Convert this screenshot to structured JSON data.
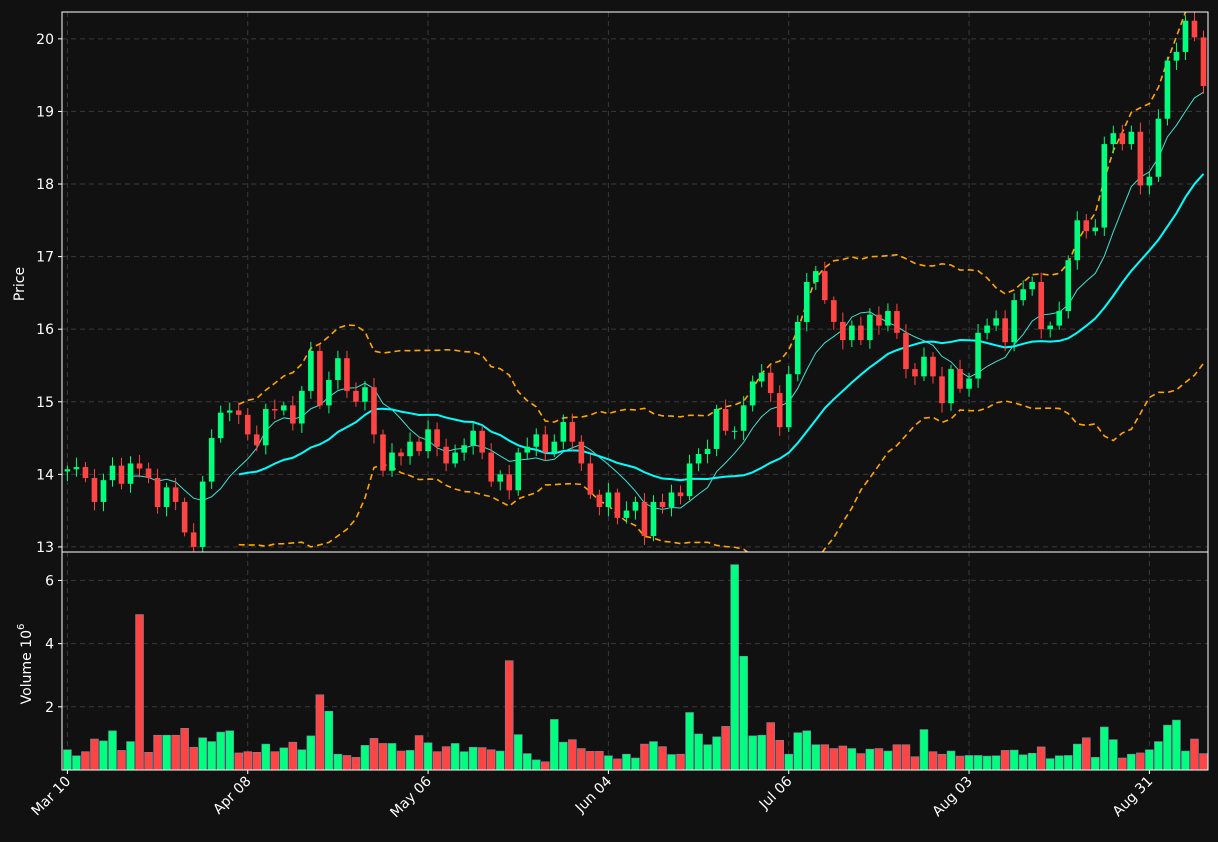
{
  "chart_data": {
    "type": "candlestick",
    "colors": {
      "background": "#111111",
      "up": "#00ff7f",
      "down": "#ff4444",
      "grid": "#3a3a3a",
      "ma_fast": "#40e0d0",
      "ma_slow": "#00ffff",
      "bollinger": "#ffa500",
      "axis": "#ffffff"
    },
    "price_panel": {
      "ylabel": "Price",
      "yticks": [
        13,
        14,
        15,
        16,
        17,
        18,
        19,
        20
      ],
      "ylim": [
        12.93,
        20.37
      ],
      "grid": true
    },
    "volume_panel": {
      "ylabel": "Volume  10",
      "ylabel_exponent": "6",
      "yticks": [
        2,
        4,
        6
      ],
      "ylim": [
        0,
        6.9
      ],
      "grid": true
    },
    "x_ticks": [
      {
        "index": 0,
        "label": "Mar 10"
      },
      {
        "index": 20,
        "label": "Apr 08"
      },
      {
        "index": 40,
        "label": "May 06"
      },
      {
        "index": 60,
        "label": "Jun 04"
      },
      {
        "index": 80,
        "label": "Jul 06"
      },
      {
        "index": 100,
        "label": "Aug 03"
      },
      {
        "index": 120,
        "label": "Aug 31"
      }
    ],
    "x_range": [
      -0.6,
      126.5
    ],
    "dates": [
      "Mar 10",
      "Mar 11",
      "Mar 12",
      "Mar 13",
      "Mar 14",
      "Mar 15",
      "Mar 16",
      "Mar 17",
      "Mar 18",
      "Mar 19",
      "Mar 20",
      "Mar 21",
      "Mar 22",
      "Mar 23",
      "Mar 24",
      "Mar 25",
      "Mar 26",
      "Mar 27",
      "Mar 28",
      "Mar 29",
      "Apr 08",
      "Apr 09",
      "Apr 10",
      "Apr 11",
      "Apr 12",
      "Apr 13",
      "Apr 14",
      "Apr 15",
      "Apr 16",
      "Apr 17",
      "Apr 18",
      "Apr 19",
      "Apr 20",
      "Apr 21",
      "Apr 22",
      "Apr 23",
      "Apr 24",
      "Apr 25",
      "Apr 26",
      "Apr 27",
      "May 06",
      "May 07",
      "May 08",
      "May 09",
      "May 10",
      "May 11",
      "May 12",
      "May 13",
      "May 14",
      "May 15",
      "May 16",
      "May 17",
      "May 18",
      "May 19",
      "May 20",
      "May 21",
      "May 22",
      "May 23",
      "May 24",
      "May 25",
      "Jun 04",
      "Jun 05",
      "Jun 06",
      "Jun 07",
      "Jun 08",
      "Jun 09",
      "Jun 10",
      "Jun 11",
      "Jun 12",
      "Jun 13",
      "Jun 14",
      "Jun 15",
      "Jun 16",
      "Jun 17",
      "Jun 18",
      "Jun 19",
      "Jun 20",
      "Jun 21",
      "Jun 22",
      "Jun 23",
      "Jul 06",
      "Jul 07",
      "Jul 08",
      "Jul 09",
      "Jul 10",
      "Jul 11",
      "Jul 12",
      "Jul 13",
      "Jul 14",
      "Jul 15",
      "Jul 16",
      "Jul 17",
      "Jul 18",
      "Jul 19",
      "Jul 20",
      "Jul 21",
      "Jul 22",
      "Jul 23",
      "Jul 24",
      "Jul 25",
      "Aug 03",
      "Aug 04",
      "Aug 05",
      "Aug 06",
      "Aug 07",
      "Aug 08",
      "Aug 09",
      "Aug 10",
      "Aug 11",
      "Aug 12",
      "Aug 13",
      "Aug 14",
      "Aug 15",
      "Aug 16",
      "Aug 17",
      "Aug 18",
      "Aug 19",
      "Aug 20",
      "Aug 21",
      "Aug 22",
      "Aug 31",
      "Sep 01",
      "Sep 02",
      "Sep 03",
      "Sep 04",
      "Sep 05",
      "Sep 06"
    ],
    "close": [
      14.07,
      14.1,
      13.95,
      13.62,
      13.92,
      14.12,
      13.87,
      14.15,
      14.08,
      13.95,
      13.55,
      13.82,
      13.62,
      13.2,
      13.0,
      13.9,
      14.5,
      14.85,
      14.88,
      14.82,
      14.55,
      14.4,
      14.9,
      14.88,
      14.95,
      14.7,
      15.15,
      15.7,
      14.95,
      15.3,
      15.6,
      15.15,
      15.0,
      15.2,
      14.55,
      14.05,
      14.3,
      14.25,
      14.45,
      14.32,
      14.62,
      14.38,
      14.15,
      14.3,
      14.4,
      14.6,
      14.3,
      13.9,
      14.0,
      13.78,
      14.3,
      14.38,
      14.55,
      14.3,
      14.45,
      14.72,
      14.45,
      14.15,
      13.72,
      13.55,
      13.75,
      13.4,
      13.5,
      13.62,
      13.15,
      13.62,
      13.55,
      13.75,
      13.7,
      14.15,
      14.28,
      14.35,
      14.9,
      14.6,
      14.6,
      14.95,
      15.28,
      15.4,
      15.12,
      14.65,
      15.38,
      16.1,
      16.65,
      16.8,
      16.4,
      16.1,
      15.85,
      16.05,
      15.85,
      16.2,
      16.05,
      16.25,
      15.95,
      15.45,
      15.35,
      15.62,
      15.35,
      14.98,
      15.45,
      15.18,
      15.32,
      15.95,
      16.05,
      16.15,
      15.82,
      16.4,
      16.55,
      16.65,
      16.0,
      16.05,
      16.25,
      16.95,
      17.5,
      17.35,
      17.4,
      18.55,
      18.7,
      18.55,
      18.72,
      17.98,
      18.1,
      18.9,
      19.7,
      19.82,
      20.25,
      20.02,
      19.35
    ],
    "volume": [
      0.64,
      0.45,
      0.58,
      0.98,
      0.92,
      1.24,
      0.62,
      0.9,
      4.92,
      0.56,
      1.1,
      1.1,
      1.1,
      1.32,
      0.72,
      1.02,
      0.9,
      1.2,
      1.24,
      0.54,
      0.58,
      0.56,
      0.82,
      0.58,
      0.7,
      0.88,
      0.64,
      1.08,
      2.38,
      1.86,
      0.5,
      0.46,
      0.4,
      0.78,
      1.0,
      0.84,
      0.84,
      0.6,
      0.62,
      1.09,
      0.86,
      0.58,
      0.74,
      0.84,
      0.58,
      0.72,
      0.71,
      0.64,
      0.6,
      3.46,
      1.12,
      0.52,
      0.32,
      0.26,
      1.6,
      0.88,
      0.96,
      0.68,
      0.59,
      0.59,
      0.45,
      0.35,
      0.5,
      0.38,
      0.82,
      0.9,
      0.74,
      0.49,
      0.5,
      1.82,
      1.14,
      0.8,
      1.05,
      1.38,
      6.5,
      3.6,
      1.08,
      1.1,
      1.5,
      0.94,
      0.5,
      1.18,
      1.24,
      0.8,
      0.8,
      0.68,
      0.76,
      0.68,
      0.52,
      0.66,
      0.68,
      0.6,
      0.8,
      0.8,
      0.42,
      1.28,
      0.58,
      0.5,
      0.6,
      0.44,
      0.46,
      0.46,
      0.44,
      0.45,
      0.62,
      0.63,
      0.48,
      0.53,
      0.73,
      0.36,
      0.45,
      0.46,
      0.82,
      1.02,
      0.4,
      1.36,
      0.96,
      0.38,
      0.5,
      0.54,
      0.64,
      0.9,
      1.42,
      1.58,
      0.6,
      0.98,
      0.52
    ]
  }
}
